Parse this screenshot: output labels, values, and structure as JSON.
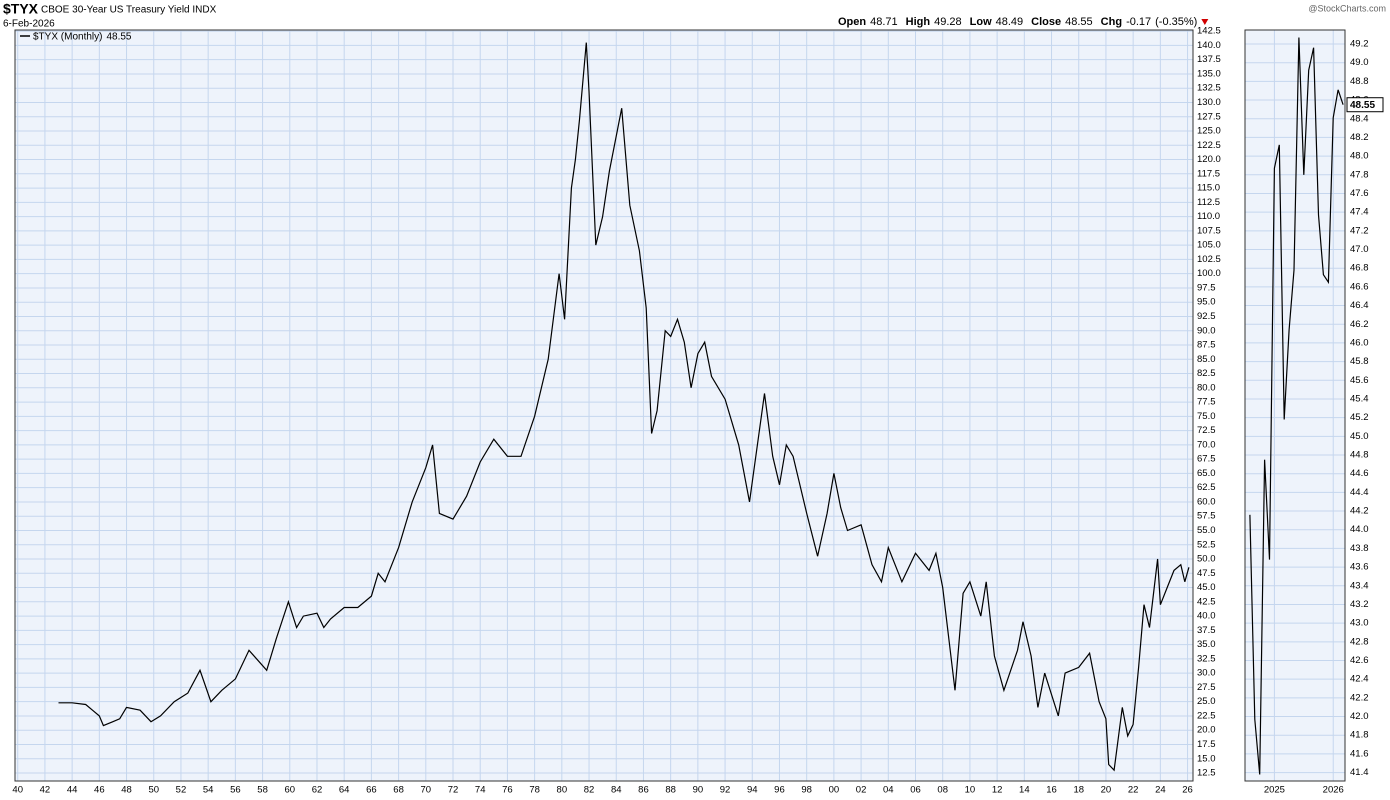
{
  "chart_data": [
    {
      "type": "line",
      "symbol": "$TYX",
      "title": "CBOE 30-Year US Treasury Yield INDX",
      "date": "6-Feb-2026",
      "source": "@StockCharts.com",
      "quote": [
        {
          "label": "Open",
          "value": 48.71
        },
        {
          "label": "High",
          "value": 49.28
        },
        {
          "label": "Low",
          "value": 48.49
        },
        {
          "label": "Close",
          "value": 48.55
        },
        {
          "label": "Chg",
          "value": -0.17
        }
      ],
      "change_percent": {
        "value": -0.35,
        "label": "(-0.35%)"
      },
      "grid": true,
      "x": [
        1943.0,
        1944.0,
        1945.0,
        1945.5,
        1946.0,
        1946.3,
        1947.0,
        1947.5,
        1948.0,
        1949.0,
        1949.8,
        1950.5,
        1951.5,
        1952.5,
        1953.4,
        1954.2,
        1955.0,
        1956.0,
        1957.0,
        1958.3,
        1959.0,
        1959.9,
        1960.5,
        1961.0,
        1962.0,
        1962.5,
        1963.0,
        1964.0,
        1965.0,
        1966.0,
        1966.5,
        1967.0,
        1968.0,
        1969.0,
        1970.0,
        1970.5,
        1971.0,
        1972.0,
        1973.0,
        1974.0,
        1975.0,
        1976.0,
        1977.0,
        1978.0,
        1979.0,
        1979.8,
        1980.2,
        1980.7,
        1981.0,
        1981.3,
        1981.8,
        1982.0,
        1982.5,
        1983.0,
        1983.5,
        1984.4,
        1985.0,
        1985.7,
        1986.2,
        1986.6,
        1987.0,
        1987.6,
        1988.0,
        1988.5,
        1989.0,
        1989.5,
        1990.0,
        1990.5,
        1991.0,
        1992.0,
        1993.0,
        1993.8,
        1994.9,
        1995.5,
        1996.0,
        1996.5,
        1997.0,
        1998.0,
        1998.8,
        1999.5,
        2000.0,
        2000.5,
        2001.0,
        2002.0,
        2002.8,
        2003.5,
        2004.0,
        2005.0,
        2006.0,
        2007.0,
        2007.5,
        2008.0,
        2008.9,
        2009.5,
        2010.0,
        2010.8,
        2011.2,
        2011.8,
        2012.5,
        2013.5,
        2013.9,
        2014.5,
        2015.0,
        2015.5,
        2016.5,
        2017.0,
        2018.0,
        2018.8,
        2019.5,
        2020.0,
        2020.2,
        2020.6,
        2021.2,
        2021.6,
        2022.0,
        2022.4,
        2022.8,
        2023.2,
        2023.8,
        2024.0,
        2024.5,
        2025.0,
        2025.5,
        2025.8,
        2026.1
      ],
      "series": [
        {
          "name": "$TYX (Monthly)",
          "color": "#000000",
          "values": [
            24.8,
            24.8,
            24.5,
            23.5,
            22.5,
            20.8,
            21.5,
            22,
            24,
            23.5,
            21.5,
            22.5,
            25,
            26.5,
            30.5,
            25,
            27,
            29,
            34,
            30.5,
            36,
            42.5,
            38,
            40,
            40.5,
            38,
            39.5,
            41.5,
            41.5,
            43.5,
            47.5,
            46,
            52,
            60,
            66,
            70,
            58,
            57,
            61,
            67,
            71,
            68,
            68,
            75,
            85,
            100,
            92,
            115,
            120,
            127,
            140.5,
            132,
            105,
            110,
            118,
            129,
            112,
            104,
            94,
            72,
            76,
            90,
            89,
            92,
            88,
            80,
            86,
            88,
            82,
            78,
            70,
            60,
            79,
            68,
            63,
            70,
            68,
            58,
            50.5,
            58,
            65,
            59,
            55,
            56,
            49,
            46,
            52,
            46,
            51,
            48,
            51,
            45,
            27,
            44,
            46,
            40,
            46,
            33,
            27,
            34,
            39,
            33,
            24,
            30,
            22.5,
            30,
            31,
            33.5,
            25,
            22,
            14,
            13,
            24,
            19,
            21,
            31,
            42,
            38,
            50,
            42,
            45,
            48,
            49,
            46,
            48.55
          ]
        }
      ],
      "xlim": [
        1939.8,
        2026.4
      ],
      "xticks": [
        {
          "value": 1940,
          "label": "40"
        },
        {
          "value": 1942,
          "label": "42"
        },
        {
          "value": 1944,
          "label": "44"
        },
        {
          "value": 1946,
          "label": "46"
        },
        {
          "value": 1948,
          "label": "48"
        },
        {
          "value": 1950,
          "label": "50"
        },
        {
          "value": 1952,
          "label": "52"
        },
        {
          "value": 1954,
          "label": "54"
        },
        {
          "value": 1956,
          "label": "56"
        },
        {
          "value": 1958,
          "label": "58"
        },
        {
          "value": 1960,
          "label": "60"
        },
        {
          "value": 1962,
          "label": "62"
        },
        {
          "value": 1964,
          "label": "64"
        },
        {
          "value": 1966,
          "label": "66"
        },
        {
          "value": 1968,
          "label": "68"
        },
        {
          "value": 1970,
          "label": "70"
        },
        {
          "value": 1972,
          "label": "72"
        },
        {
          "value": 1974,
          "label": "74"
        },
        {
          "value": 1976,
          "label": "76"
        },
        {
          "value": 1978,
          "label": "78"
        },
        {
          "value": 1980,
          "label": "80"
        },
        {
          "value": 1982,
          "label": "82"
        },
        {
          "value": 1984,
          "label": "84"
        },
        {
          "value": 1986,
          "label": "86"
        },
        {
          "value": 1988,
          "label": "88"
        },
        {
          "value": 1990,
          "label": "90"
        },
        {
          "value": 1992,
          "label": "92"
        },
        {
          "value": 1994,
          "label": "94"
        },
        {
          "value": 1996,
          "label": "96"
        },
        {
          "value": 1998,
          "label": "98"
        },
        {
          "value": 2000,
          "label": "00"
        },
        {
          "value": 2002,
          "label": "02"
        },
        {
          "value": 2004,
          "label": "04"
        },
        {
          "value": 2006,
          "label": "06"
        },
        {
          "value": 2008,
          "label": "08"
        },
        {
          "value": 2010,
          "label": "10"
        },
        {
          "value": 2012,
          "label": "12"
        },
        {
          "value": 2014,
          "label": "14"
        },
        {
          "value": 2016,
          "label": "16"
        },
        {
          "value": 2018,
          "label": "18"
        },
        {
          "value": 2020,
          "label": "20"
        },
        {
          "value": 2022,
          "label": "22"
        },
        {
          "value": 2024,
          "label": "24"
        },
        {
          "value": 2026,
          "label": "26"
        }
      ],
      "ylim": [
        11.1,
        142.7
      ],
      "yticks": [
        12.5,
        {
          "value": 15,
          "label": "15.0"
        },
        17.5,
        {
          "value": 20,
          "label": "20.0"
        },
        22.5,
        {
          "value": 25,
          "label": "25.0"
        },
        27.5,
        {
          "value": 30,
          "label": "30.0"
        },
        32.5,
        {
          "value": 35,
          "label": "35.0"
        },
        37.5,
        {
          "value": 40,
          "label": "40.0"
        },
        42.5,
        {
          "value": 45,
          "label": "45.0"
        },
        47.5,
        {
          "value": 50,
          "label": "50.0"
        },
        52.5,
        {
          "value": 55,
          "label": "55.0"
        },
        57.5,
        {
          "value": 60,
          "label": "60.0"
        },
        62.5,
        {
          "value": 65,
          "label": "65.0"
        },
        67.5,
        {
          "value": 70,
          "label": "70.0"
        },
        72.5,
        {
          "value": 75,
          "label": "75.0"
        },
        77.5,
        {
          "value": 80,
          "label": "80.0"
        },
        82.5,
        {
          "value": 85,
          "label": "85.0"
        },
        87.5,
        {
          "value": 90,
          "label": "90.0"
        },
        92.5,
        {
          "value": 95,
          "label": "95.0"
        },
        97.5,
        {
          "value": 100,
          "label": "100.0"
        },
        102.5,
        {
          "value": 105,
          "label": "105.0"
        },
        107.5,
        {
          "value": 110,
          "label": "110.0"
        },
        112.5,
        {
          "value": 115,
          "label": "115.0"
        },
        117.5,
        {
          "value": 120,
          "label": "120.0"
        },
        122.5,
        {
          "value": 125,
          "label": "125.0"
        },
        127.5,
        {
          "value": 130,
          "label": "130.0"
        },
        132.5,
        {
          "value": 135,
          "label": "135.0"
        },
        137.5,
        {
          "value": 140,
          "label": "140.0"
        },
        142.5
      ]
    },
    {
      "type": "line",
      "grid": true,
      "x": [
        2024.583,
        2024.667,
        2024.75,
        2024.833,
        2024.917,
        2025.0,
        2025.083,
        2025.167,
        2025.25,
        2025.333,
        2025.417,
        2025.5,
        2025.583,
        2025.667,
        2025.75,
        2025.833,
        2025.917,
        2026.0,
        2026.083,
        2026.167
      ],
      "series": [
        {
          "color": "#000000",
          "values": [
            44.16,
            41.97,
            41.38,
            44.75,
            43.68,
            47.87,
            48.12,
            45.18,
            46.14,
            46.78,
            49.27,
            47.8,
            48.92,
            49.16,
            47.37,
            46.73,
            46.65,
            48.41,
            48.71,
            48.55
          ]
        }
      ],
      "xlim": [
        2024.5,
        2026.2
      ],
      "xticks": [
        2025,
        2026
      ],
      "ylim": [
        41.31,
        49.35
      ],
      "yticks": [
        41.4,
        41.6,
        41.8,
        {
          "value": 42,
          "label": "42.0"
        },
        42.2,
        42.4,
        42.6,
        42.8,
        {
          "value": 43,
          "label": "43.0"
        },
        43.2,
        43.4,
        43.6,
        43.8,
        {
          "value": 44,
          "label": "44.0"
        },
        44.2,
        44.4,
        44.6,
        44.8,
        {
          "value": 45,
          "label": "45.0"
        },
        45.2,
        45.4,
        45.6,
        45.8,
        {
          "value": 46,
          "label": "46.0"
        },
        46.2,
        46.4,
        46.6,
        46.8,
        {
          "value": 47,
          "label": "47.0"
        },
        47.2,
        47.4,
        47.6,
        47.8,
        {
          "value": 48,
          "label": "48.0"
        },
        48.2,
        48.4,
        48.6,
        48.8,
        {
          "value": 49,
          "label": "49.0"
        },
        49.2
      ]
    }
  ]
}
